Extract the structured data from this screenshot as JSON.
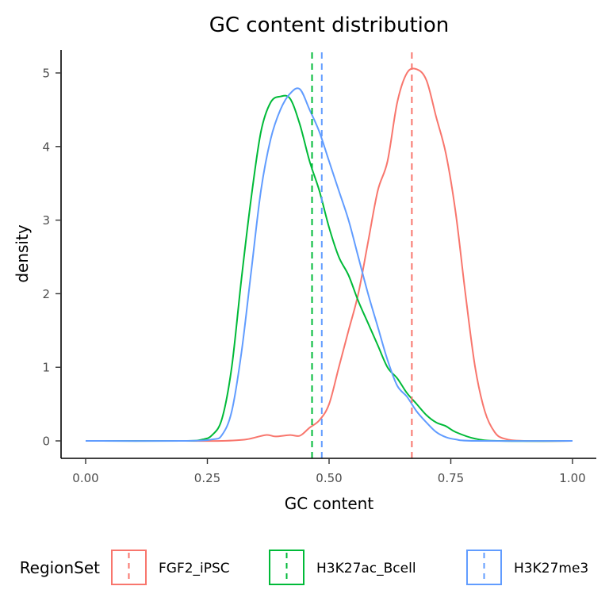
{
  "chart_data": {
    "type": "line",
    "title": "GC content distribution",
    "xlabel": "GC content",
    "ylabel": "density",
    "xlim": [
      0,
      1
    ],
    "ylim": [
      0,
      5
    ],
    "x_ticks": [
      0.0,
      0.25,
      0.5,
      0.75,
      1.0
    ],
    "x_tick_labels": [
      "0.00",
      "0.25",
      "0.50",
      "0.75",
      "1.00"
    ],
    "y_ticks": [
      0,
      1,
      2,
      3,
      4,
      5
    ],
    "y_tick_labels": [
      "0",
      "1",
      "2",
      "3",
      "4",
      "5"
    ],
    "grid": false,
    "legend": {
      "title": "RegionSet",
      "position": "bottom",
      "glyph": "dashed vertical line"
    },
    "series": [
      {
        "name": "FGF2_iPSC",
        "color": "#F8766D",
        "mean": 0.67,
        "x": [
          0.0,
          0.2,
          0.28,
          0.33,
          0.37,
          0.39,
          0.42,
          0.44,
          0.46,
          0.48,
          0.5,
          0.52,
          0.54,
          0.56,
          0.58,
          0.6,
          0.62,
          0.64,
          0.66,
          0.68,
          0.7,
          0.72,
          0.74,
          0.76,
          0.78,
          0.8,
          0.82,
          0.84,
          0.86,
          0.9,
          1.0
        ],
        "y": [
          0.0,
          0.0,
          0.0,
          0.02,
          0.08,
          0.06,
          0.08,
          0.07,
          0.18,
          0.28,
          0.5,
          1.0,
          1.5,
          2.0,
          2.7,
          3.4,
          3.8,
          4.6,
          5.0,
          5.05,
          4.9,
          4.4,
          3.9,
          3.1,
          2.0,
          1.0,
          0.4,
          0.12,
          0.03,
          0.0,
          0.0
        ]
      },
      {
        "name": "H3K27ac_Bcell",
        "color": "#00BA38",
        "mean": 0.465,
        "x": [
          0.0,
          0.2,
          0.24,
          0.26,
          0.28,
          0.3,
          0.32,
          0.34,
          0.36,
          0.38,
          0.4,
          0.42,
          0.44,
          0.46,
          0.48,
          0.5,
          0.52,
          0.54,
          0.56,
          0.58,
          0.6,
          0.62,
          0.64,
          0.66,
          0.68,
          0.7,
          0.72,
          0.74,
          0.76,
          0.8,
          0.85,
          1.0
        ],
        "y": [
          0.0,
          0.0,
          0.02,
          0.08,
          0.3,
          1.0,
          2.2,
          3.3,
          4.2,
          4.6,
          4.68,
          4.65,
          4.3,
          3.8,
          3.4,
          2.9,
          2.5,
          2.25,
          1.9,
          1.6,
          1.3,
          1.0,
          0.85,
          0.65,
          0.5,
          0.35,
          0.25,
          0.2,
          0.12,
          0.03,
          0.0,
          0.0
        ]
      },
      {
        "name": "H3K27me3",
        "color": "#619CFF",
        "mean": 0.485,
        "x": [
          0.0,
          0.2,
          0.26,
          0.28,
          0.3,
          0.32,
          0.34,
          0.36,
          0.38,
          0.4,
          0.42,
          0.44,
          0.46,
          0.48,
          0.5,
          0.52,
          0.54,
          0.56,
          0.58,
          0.6,
          0.62,
          0.64,
          0.66,
          0.68,
          0.7,
          0.72,
          0.74,
          0.76,
          0.8,
          1.0
        ],
        "y": [
          0.0,
          0.0,
          0.02,
          0.08,
          0.4,
          1.2,
          2.3,
          3.4,
          4.1,
          4.5,
          4.72,
          4.78,
          4.5,
          4.2,
          3.8,
          3.4,
          3.0,
          2.5,
          2.0,
          1.55,
          1.1,
          0.75,
          0.6,
          0.4,
          0.25,
          0.12,
          0.05,
          0.02,
          0.0,
          0.0
        ]
      }
    ]
  }
}
